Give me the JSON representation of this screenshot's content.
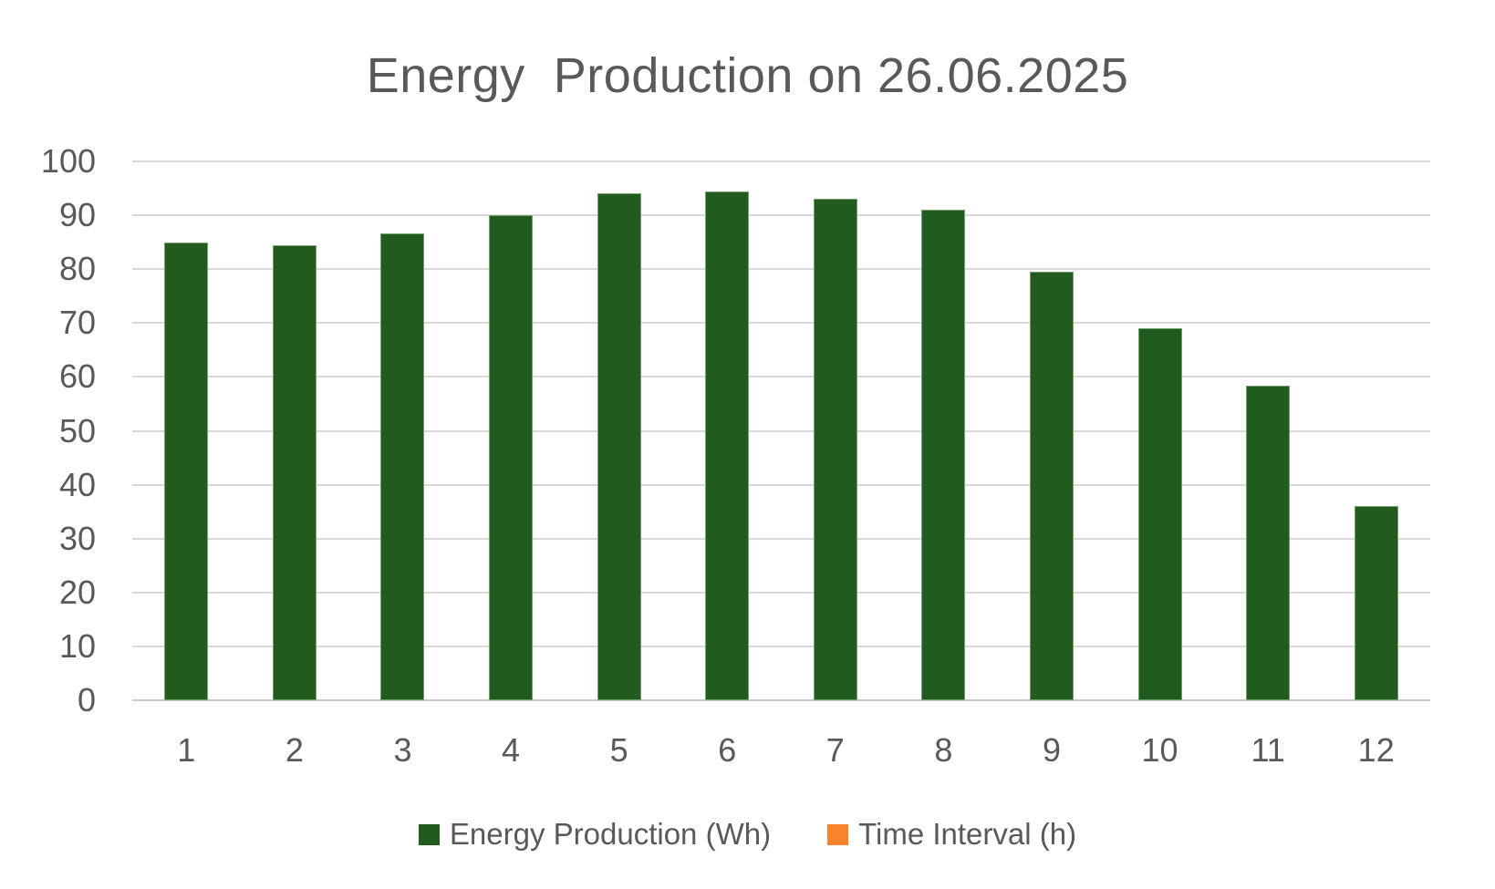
{
  "chart_data": {
    "type": "bar",
    "title": "Energy  Production on 26.06.2025",
    "categories": [
      "1",
      "2",
      "3",
      "4",
      "5",
      "6",
      "7",
      "8",
      "9",
      "10",
      "11",
      "12"
    ],
    "series": [
      {
        "name": "Energy Production (Wh)",
        "color": "#215c1e",
        "values": [
          85,
          84.4,
          86.6,
          90.1,
          94,
          94.4,
          93.1,
          91,
          79.6,
          69.1,
          58.3,
          36
        ]
      },
      {
        "name": "Time Interval (h)",
        "color": "#f9822c",
        "values": []
      }
    ],
    "xlabel": "",
    "ylabel": "",
    "ylim": [
      0,
      100
    ],
    "ytick_step": 10,
    "yticks": [
      0,
      10,
      20,
      30,
      40,
      50,
      60,
      70,
      80,
      90,
      100
    ],
    "grid": true,
    "legend_position": "bottom",
    "colors": {
      "title_text": "#595959",
      "tick_text": "#595959",
      "gridline": "#d9d9d9",
      "axis_line": "#c8c8c8",
      "background": "#ffffff"
    }
  }
}
